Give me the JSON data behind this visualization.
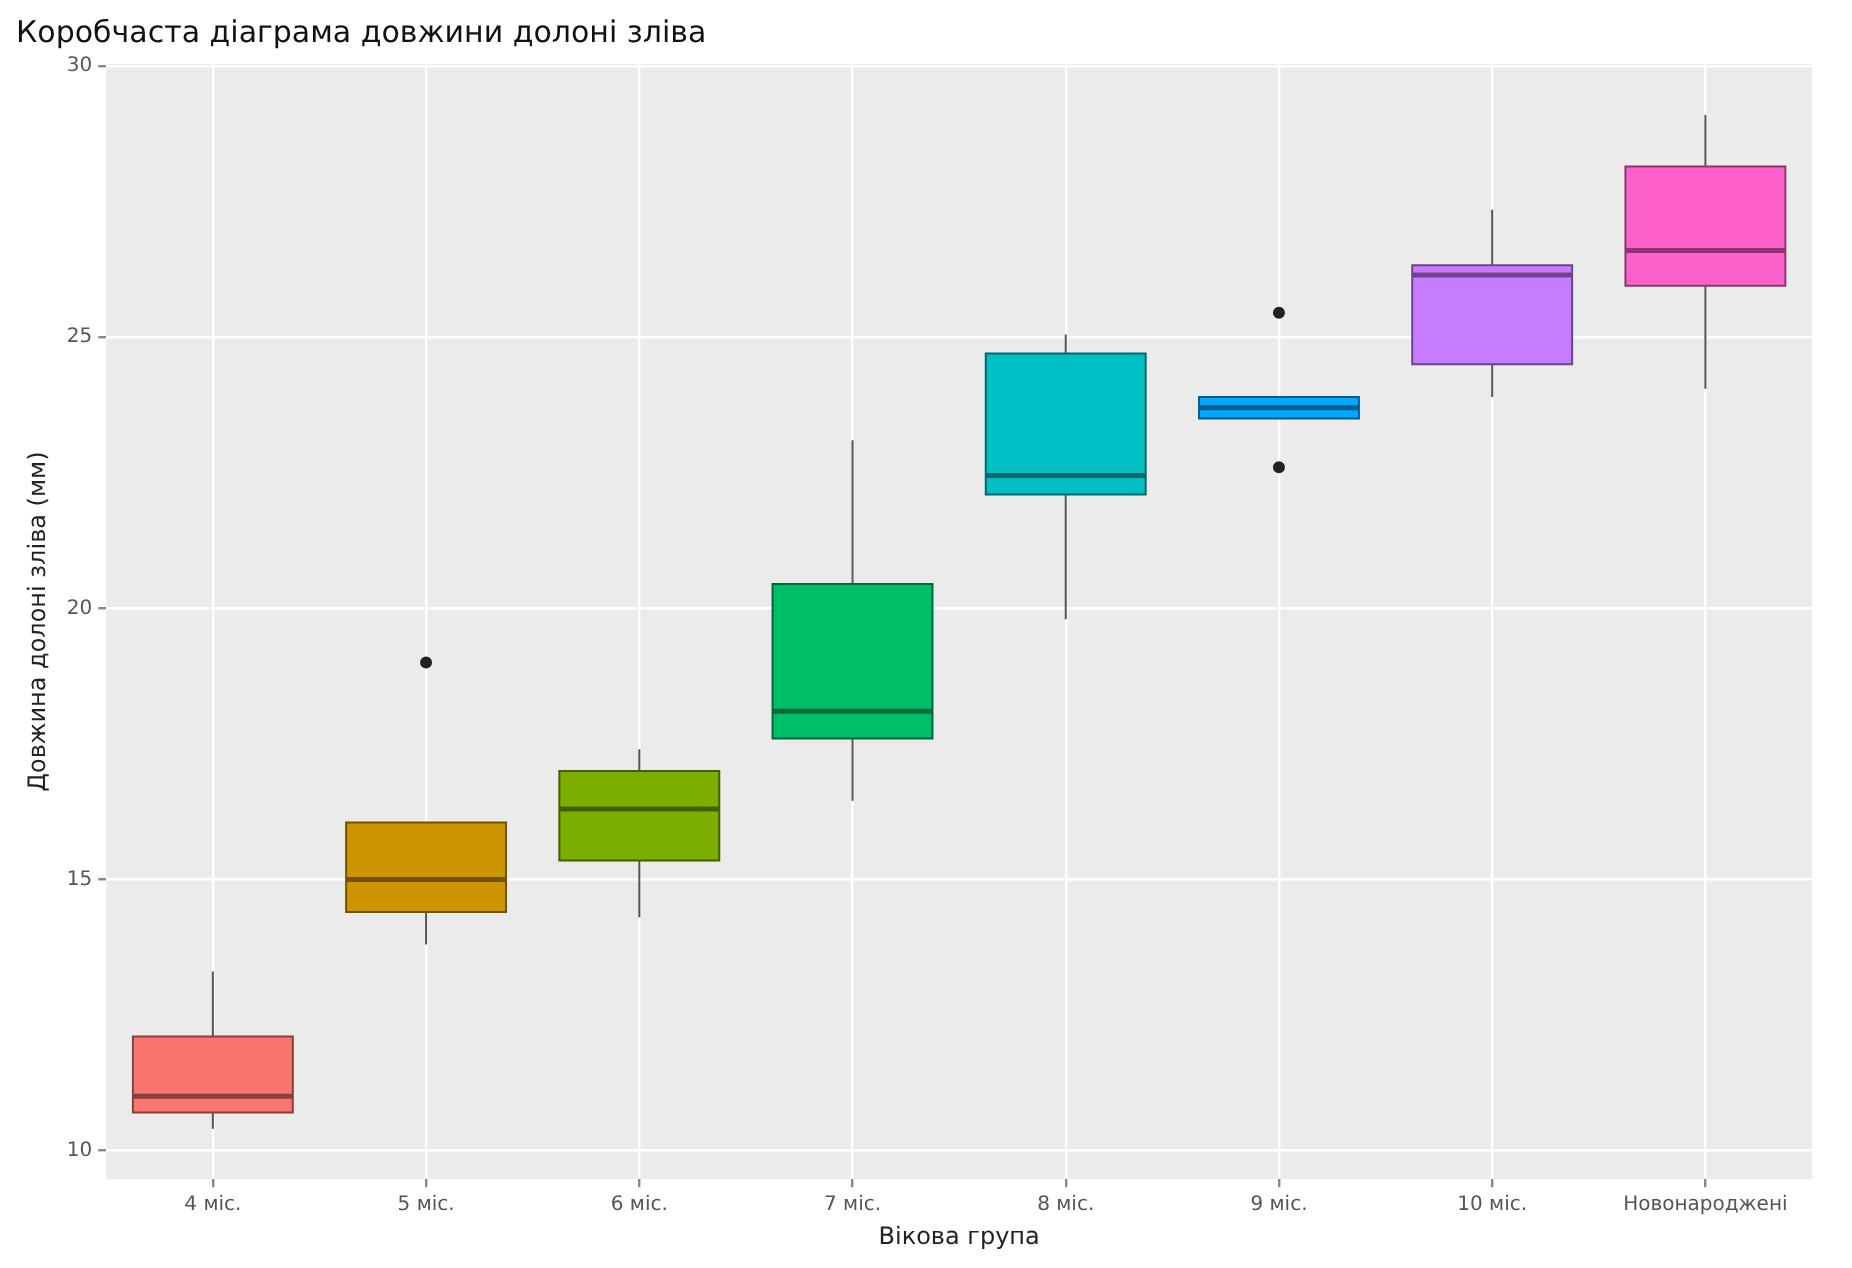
{
  "chart_data": {
    "type": "box",
    "title": "Коробчаста діаграма довжини долоні зліва",
    "xlabel": "Вікова група",
    "ylabel": "Довжина долоні зліва (мм)",
    "categories": [
      "4 міс.",
      "5 міс.",
      "6 міс.",
      "7 міс.",
      "8 міс.",
      "9 міс.",
      "10 міс.",
      "Новонароджені"
    ],
    "colors": [
      "#f8766d",
      "#cd9600",
      "#7cae00",
      "#00be67",
      "#00bfc4",
      "#00a9ff",
      "#c77cff",
      "#ff61cc"
    ],
    "boxes": [
      {
        "low": 10.4,
        "q1": 10.7,
        "median": 11.0,
        "q3": 12.1,
        "high": 13.3
      },
      {
        "low": 13.8,
        "q1": 14.4,
        "median": 15.0,
        "q3": 16.05,
        "high": 16.05,
        "outliers": [
          19.0
        ]
      },
      {
        "low": 14.3,
        "q1": 15.35,
        "median": 16.3,
        "q3": 17.0,
        "high": 17.4
      },
      {
        "low": 16.45,
        "q1": 17.6,
        "median": 18.1,
        "q3": 20.45,
        "high": 23.1
      },
      {
        "low": 19.8,
        "q1": 22.1,
        "median": 22.45,
        "q3": 24.7,
        "high": 25.05
      },
      {
        "low": 23.5,
        "q1": 23.5,
        "median": 23.7,
        "q3": 23.9,
        "high": 23.9,
        "outliers": [
          25.45,
          22.6
        ]
      },
      {
        "low": 23.9,
        "q1": 24.5,
        "median": 26.15,
        "q3": 26.33,
        "high": 27.35
      },
      {
        "low": 24.05,
        "q1": 25.95,
        "median": 26.6,
        "q3": 28.15,
        "high": 29.1
      }
    ],
    "ylim": [
      9.47,
      30.04
    ],
    "yticks": [
      10,
      15,
      20,
      25,
      30
    ],
    "grid": true
  }
}
